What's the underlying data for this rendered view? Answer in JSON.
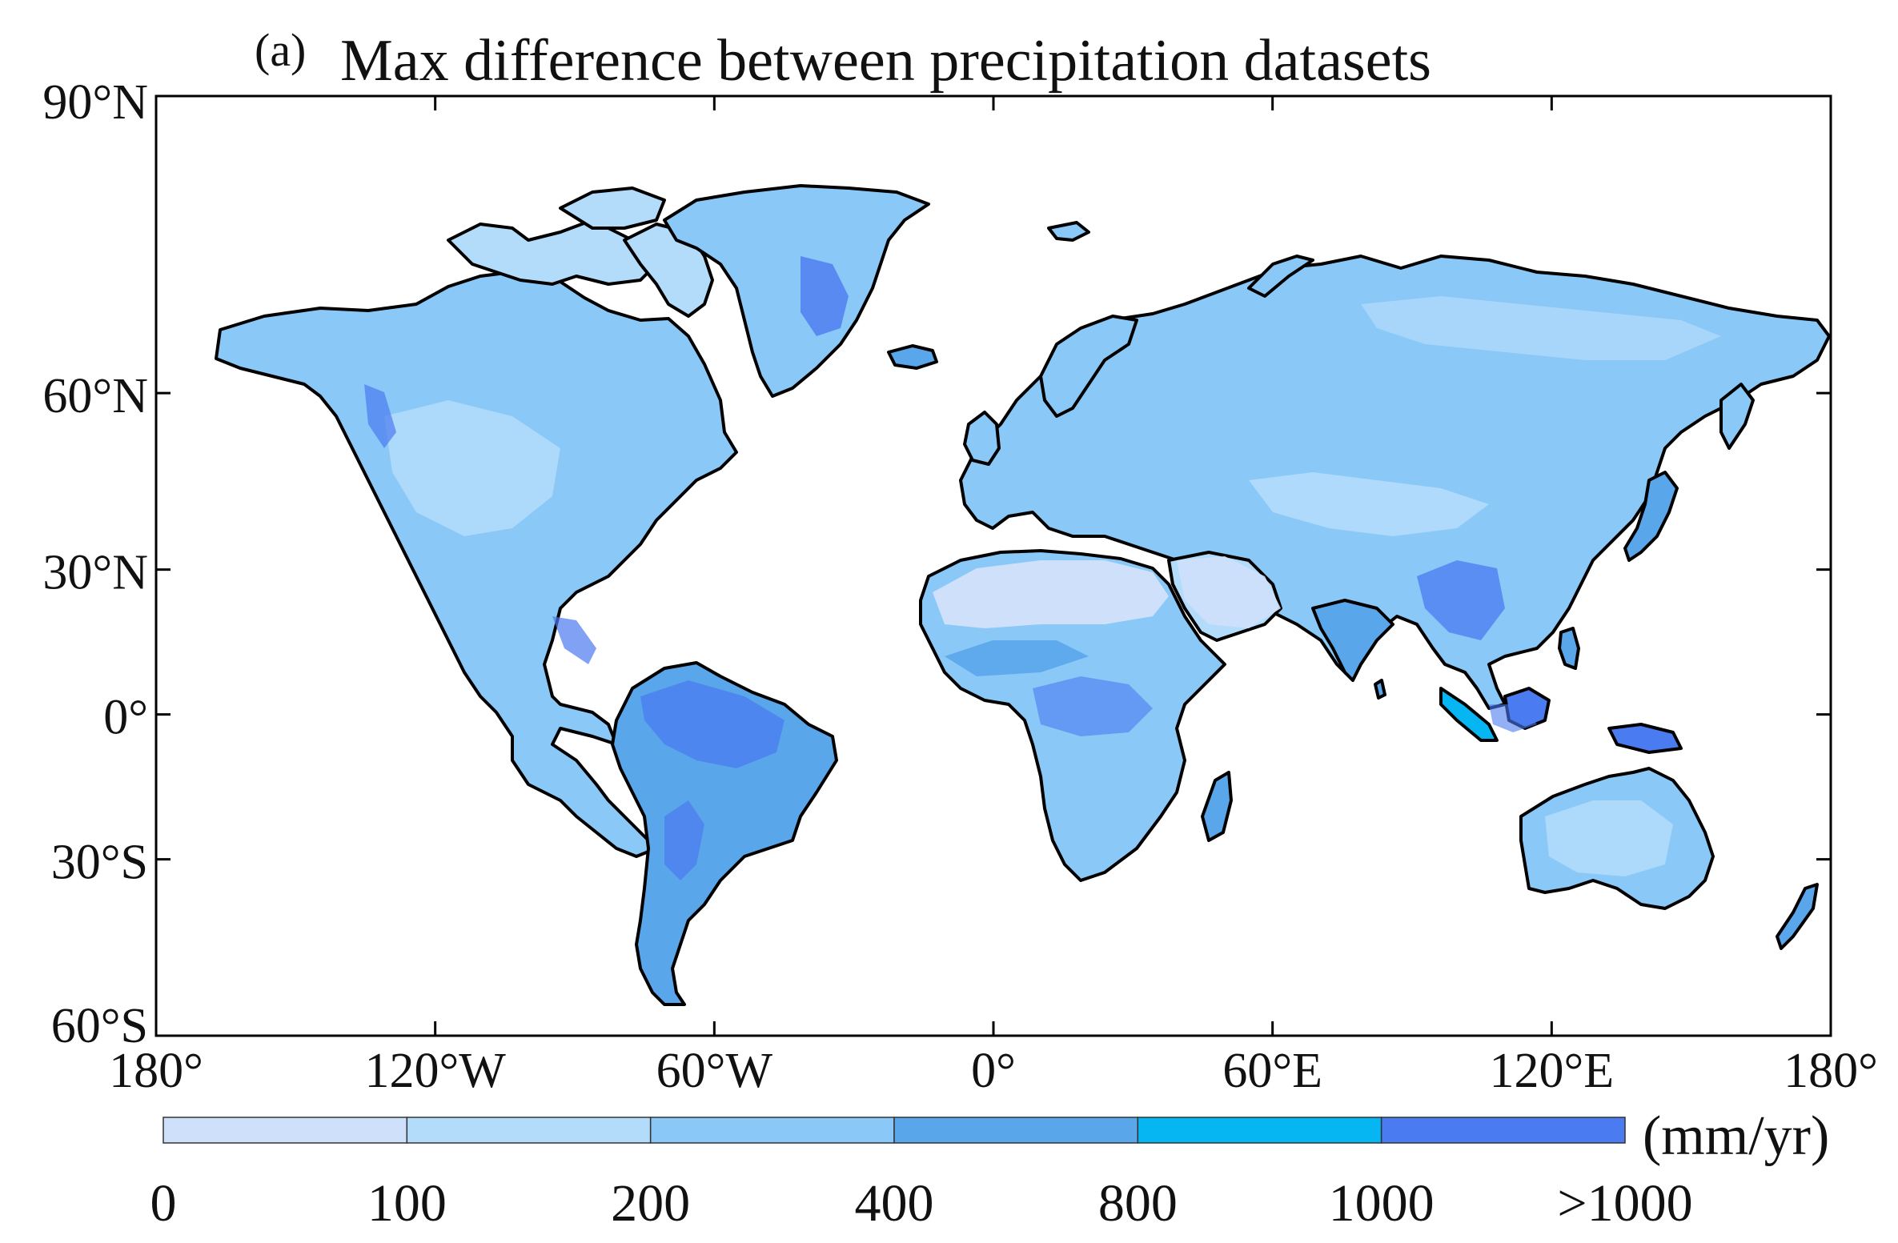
{
  "panel_label": "(a)",
  "title": "Max difference between precipitation datasets",
  "colors": {
    "land_stroke": "#000000",
    "frame": "#000000",
    "ocean": "#ffffff"
  },
  "axes": {
    "lat_labels": [
      "90°N",
      "60°N",
      "30°N",
      "0°",
      "30°S",
      "60°S"
    ],
    "lat_values": [
      90,
      60,
      30,
      0,
      -30,
      -60
    ],
    "lon_labels": [
      "180°",
      "120°W",
      "60°W",
      "0°",
      "60°E",
      "120°E",
      "180°"
    ],
    "lon_values": [
      -180,
      -120,
      -60,
      0,
      60,
      120,
      180
    ],
    "lon_range": [
      -180,
      180
    ],
    "lat_range": [
      -60,
      90
    ]
  },
  "colorbar": {
    "unit": "(mm/yr)",
    "tick_labels": [
      "0",
      "100",
      "200",
      "400",
      "800",
      "1000",
      ">1000"
    ],
    "classes": [
      {
        "range": "0-100",
        "color": "#cfe0fb"
      },
      {
        "range": "100-200",
        "color": "#b3dcfb"
      },
      {
        "range": "200-400",
        "color": "#8ac8f8"
      },
      {
        "range": "400-800",
        "color": "#5aa6ea"
      },
      {
        "range": "800-1000",
        "color": "#06b6f2"
      },
      {
        "range": ">1000",
        "color": "#4b7bf0"
      }
    ]
  }
}
